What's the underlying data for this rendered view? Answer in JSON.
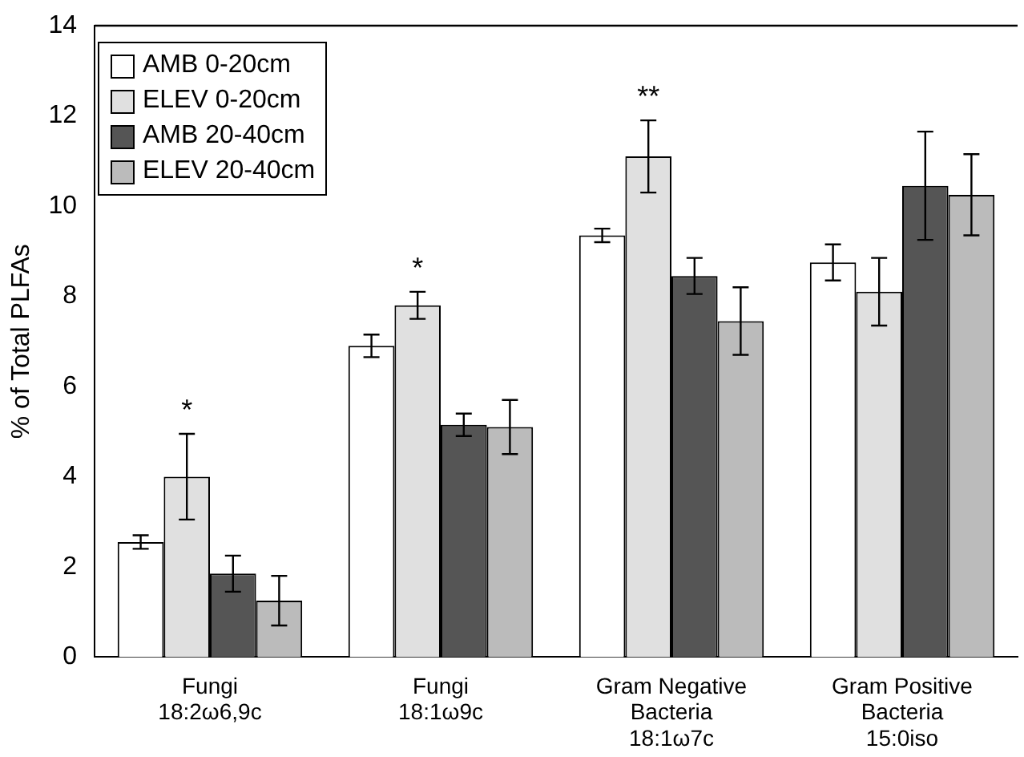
{
  "chart_data": {
    "type": "bar",
    "ylabel": "% of Total PLFAs",
    "categories": [
      "Fungi\n18:2ω6,9c",
      "Fungi\n18:1ω9c",
      "Gram Negative\nBacteria\n18:1ω7c",
      "Gram Positive\nBacteria\n15:0iso"
    ],
    "series": [
      {
        "name": "AMB 0-20cm",
        "color": "#ffffff",
        "values": [
          2.55,
          6.9,
          9.35,
          8.75
        ],
        "errors": [
          0.15,
          0.25,
          0.15,
          0.4
        ]
      },
      {
        "name": "ELEV 0-20cm",
        "color": "#e0e0e0",
        "values": [
          4.0,
          7.8,
          11.1,
          8.1
        ],
        "errors": [
          0.95,
          0.3,
          0.8,
          0.75
        ]
      },
      {
        "name": "AMB 20-40cm",
        "color": "#555555",
        "values": [
          1.85,
          5.15,
          8.45,
          10.45
        ],
        "errors": [
          0.4,
          0.25,
          0.4,
          1.2
        ]
      },
      {
        "name": "ELEV 20-40cm",
        "color": "#bbbbbb",
        "values": [
          1.25,
          5.1,
          7.45,
          10.25
        ],
        "errors": [
          0.55,
          0.6,
          0.75,
          0.9
        ]
      }
    ],
    "ylim": [
      0,
      14
    ],
    "yticks": [
      0,
      2,
      4,
      6,
      8,
      10,
      12,
      14
    ],
    "grid": false,
    "legend": "top left",
    "annotations": [
      "*",
      "*",
      "**"
    ]
  }
}
